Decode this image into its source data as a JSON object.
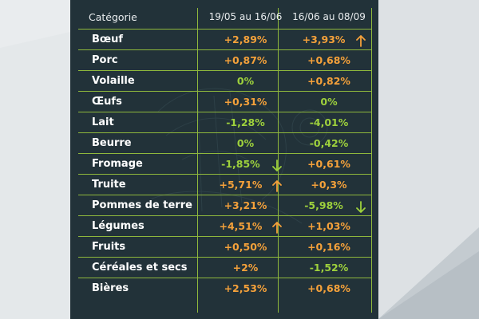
{
  "colors": {
    "panel_bg": "#223239",
    "grid_line": "#8fb83c",
    "increase": "#f5a13a",
    "decrease": "#9ed13c",
    "label": "#ffffff",
    "page_bg": "#dfe3e6"
  },
  "header": {
    "category": "Catégorie",
    "period1": "19/05 au 16/06",
    "period2": "16/06 au 08/09"
  },
  "rows": [
    {
      "label": "Bœuf",
      "p1": "+2,89%",
      "p1_color": "#f5a13a",
      "p1_arrow": "",
      "p2": "+3,93%",
      "p2_color": "#f5a13a",
      "p2_arrow": "up-arrow-icon"
    },
    {
      "label": "Porc",
      "p1": "+0,87%",
      "p1_color": "#f5a13a",
      "p1_arrow": "",
      "p2": "+0,68%",
      "p2_color": "#f5a13a",
      "p2_arrow": ""
    },
    {
      "label": "Volaille",
      "p1": "0%",
      "p1_color": "#9ed13c",
      "p1_arrow": "",
      "p2": "+0,82%",
      "p2_color": "#f5a13a",
      "p2_arrow": ""
    },
    {
      "label": "Œufs",
      "p1": "+0,31%",
      "p1_color": "#f5a13a",
      "p1_arrow": "",
      "p2": "0%",
      "p2_color": "#9ed13c",
      "p2_arrow": ""
    },
    {
      "label": "Lait",
      "p1": "-1,28%",
      "p1_color": "#9ed13c",
      "p1_arrow": "",
      "p2": "-4,01%",
      "p2_color": "#9ed13c",
      "p2_arrow": ""
    },
    {
      "label": "Beurre",
      "p1": "0%",
      "p1_color": "#9ed13c",
      "p1_arrow": "",
      "p2": "-0,42%",
      "p2_color": "#9ed13c",
      "p2_arrow": ""
    },
    {
      "label": "Fromage",
      "p1": "-1,85%",
      "p1_color": "#9ed13c",
      "p1_arrow": "down-arrow-icon",
      "p2": "+0,61%",
      "p2_color": "#f5a13a",
      "p2_arrow": ""
    },
    {
      "label": "Truite",
      "p1": "+5,71%",
      "p1_color": "#f5a13a",
      "p1_arrow": "up-arrow-icon",
      "p2": "+0,3%",
      "p2_color": "#f5a13a",
      "p2_arrow": ""
    },
    {
      "label": "Pommes de terre",
      "p1": "+3,21%",
      "p1_color": "#f5a13a",
      "p1_arrow": "",
      "p2": "-5,98%",
      "p2_color": "#9ed13c",
      "p2_arrow": "down-arrow-icon"
    },
    {
      "label": "Légumes",
      "p1": "+4,51%",
      "p1_color": "#f5a13a",
      "p1_arrow": "up-arrow-icon",
      "p2": "+1,03%",
      "p2_color": "#f5a13a",
      "p2_arrow": ""
    },
    {
      "label": "Fruits",
      "p1": "+0,50%",
      "p1_color": "#f5a13a",
      "p1_arrow": "",
      "p2": "+0,16%",
      "p2_color": "#f5a13a",
      "p2_arrow": ""
    },
    {
      "label": "Céréales et secs",
      "p1": "+2%",
      "p1_color": "#f5a13a",
      "p1_arrow": "",
      "p2": "-1,52%",
      "p2_color": "#9ed13c",
      "p2_arrow": ""
    },
    {
      "label": "Bières",
      "p1": "+2,53%",
      "p1_color": "#f5a13a",
      "p1_arrow": "",
      "p2": "+0,68%",
      "p2_color": "#f5a13a",
      "p2_arrow": ""
    }
  ]
}
